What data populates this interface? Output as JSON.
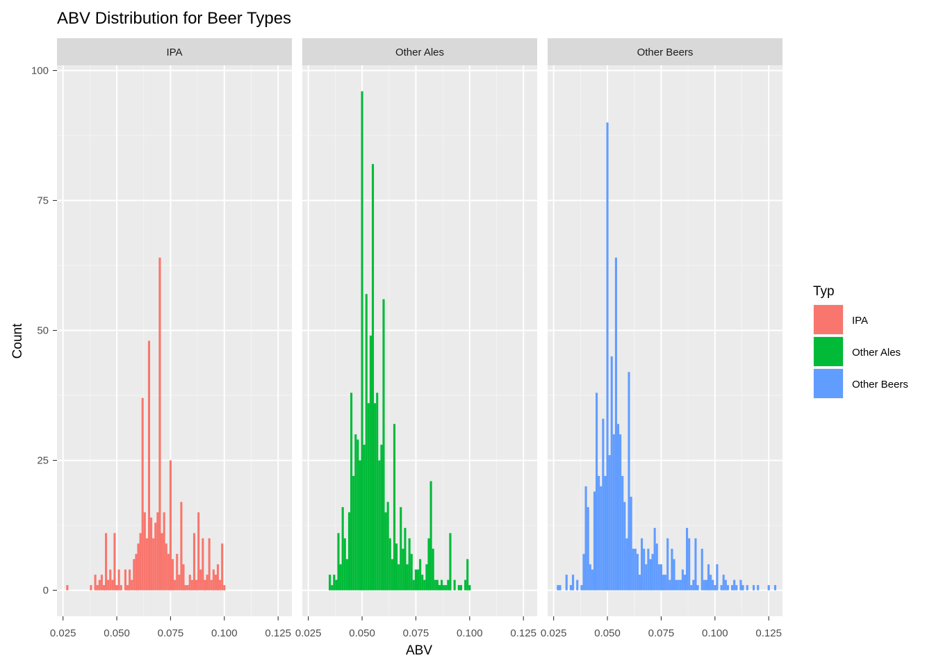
{
  "chart_data": {
    "type": "bar",
    "title": "ABV Distribution for Beer Types",
    "xlabel": "ABV",
    "ylabel": "Count",
    "xlim": [
      0.0222,
      0.1314
    ],
    "ylim": [
      -5,
      101
    ],
    "x_ticks": [
      "0.025",
      "0.050",
      "0.075",
      "0.100",
      "0.125"
    ],
    "y_ticks": [
      "0",
      "25",
      "50",
      "75",
      "100"
    ],
    "x_tick_values": [
      0.025,
      0.05,
      0.075,
      0.1,
      0.125
    ],
    "y_tick_values": [
      0,
      25,
      50,
      75,
      100
    ],
    "bin_width": 0.001,
    "grid": true,
    "legend": {
      "title": "Typ",
      "position": "right",
      "items": [
        {
          "label": "IPA",
          "color": "#F8766D"
        },
        {
          "label": "Other Ales",
          "color": "#00BA38"
        },
        {
          "label": "Other Beers",
          "color": "#619CFF"
        }
      ]
    },
    "facets": [
      {
        "name": "IPA",
        "color": "#F8766D",
        "bins": [
          [
            0.027,
            1
          ],
          [
            0.038,
            1
          ],
          [
            0.04,
            3
          ],
          [
            0.041,
            1
          ],
          [
            0.042,
            2
          ],
          [
            0.043,
            3
          ],
          [
            0.044,
            1
          ],
          [
            0.045,
            11
          ],
          [
            0.046,
            2
          ],
          [
            0.047,
            4
          ],
          [
            0.048,
            2
          ],
          [
            0.049,
            11
          ],
          [
            0.05,
            1
          ],
          [
            0.051,
            4
          ],
          [
            0.052,
            1
          ],
          [
            0.054,
            4
          ],
          [
            0.055,
            1
          ],
          [
            0.056,
            4
          ],
          [
            0.057,
            2
          ],
          [
            0.058,
            6
          ],
          [
            0.059,
            7
          ],
          [
            0.06,
            9
          ],
          [
            0.061,
            11
          ],
          [
            0.062,
            37
          ],
          [
            0.063,
            15
          ],
          [
            0.064,
            10
          ],
          [
            0.065,
            48
          ],
          [
            0.066,
            14
          ],
          [
            0.067,
            10
          ],
          [
            0.068,
            13
          ],
          [
            0.069,
            15
          ],
          [
            0.07,
            64
          ],
          [
            0.071,
            11
          ],
          [
            0.072,
            15
          ],
          [
            0.073,
            9
          ],
          [
            0.074,
            7
          ],
          [
            0.075,
            25
          ],
          [
            0.076,
            6
          ],
          [
            0.077,
            2
          ],
          [
            0.078,
            7
          ],
          [
            0.079,
            3
          ],
          [
            0.08,
            17
          ],
          [
            0.081,
            5
          ],
          [
            0.082,
            1
          ],
          [
            0.083,
            1
          ],
          [
            0.084,
            3
          ],
          [
            0.085,
            2
          ],
          [
            0.086,
            11
          ],
          [
            0.087,
            2
          ],
          [
            0.088,
            15
          ],
          [
            0.089,
            4
          ],
          [
            0.09,
            10
          ],
          [
            0.091,
            2
          ],
          [
            0.092,
            3
          ],
          [
            0.093,
            10
          ],
          [
            0.094,
            2
          ],
          [
            0.095,
            4
          ],
          [
            0.096,
            3
          ],
          [
            0.097,
            5
          ],
          [
            0.098,
            2
          ],
          [
            0.099,
            9
          ],
          [
            0.1,
            1
          ]
        ]
      },
      {
        "name": "Other Ales",
        "color": "#00BA38",
        "bins": [
          [
            0.035,
            3
          ],
          [
            0.036,
            1
          ],
          [
            0.037,
            3
          ],
          [
            0.038,
            2
          ],
          [
            0.039,
            11
          ],
          [
            0.04,
            5
          ],
          [
            0.041,
            16
          ],
          [
            0.042,
            10
          ],
          [
            0.043,
            6
          ],
          [
            0.044,
            15
          ],
          [
            0.045,
            38
          ],
          [
            0.046,
            22
          ],
          [
            0.047,
            30
          ],
          [
            0.048,
            29
          ],
          [
            0.049,
            25
          ],
          [
            0.05,
            96
          ],
          [
            0.051,
            28
          ],
          [
            0.052,
            57
          ],
          [
            0.053,
            36
          ],
          [
            0.054,
            49
          ],
          [
            0.055,
            82
          ],
          [
            0.056,
            36
          ],
          [
            0.057,
            38
          ],
          [
            0.058,
            25
          ],
          [
            0.059,
            28
          ],
          [
            0.06,
            56
          ],
          [
            0.061,
            15
          ],
          [
            0.062,
            17
          ],
          [
            0.063,
            10
          ],
          [
            0.064,
            6
          ],
          [
            0.065,
            32
          ],
          [
            0.066,
            9
          ],
          [
            0.067,
            5
          ],
          [
            0.068,
            16
          ],
          [
            0.069,
            8
          ],
          [
            0.07,
            12
          ],
          [
            0.071,
            5
          ],
          [
            0.072,
            10
          ],
          [
            0.073,
            7
          ],
          [
            0.074,
            2
          ],
          [
            0.075,
            4
          ],
          [
            0.076,
            4
          ],
          [
            0.077,
            6
          ],
          [
            0.078,
            3
          ],
          [
            0.079,
            2
          ],
          [
            0.08,
            5
          ],
          [
            0.081,
            10
          ],
          [
            0.082,
            21
          ],
          [
            0.083,
            8
          ],
          [
            0.084,
            2
          ],
          [
            0.085,
            2
          ],
          [
            0.086,
            1
          ],
          [
            0.087,
            2
          ],
          [
            0.088,
            1
          ],
          [
            0.089,
            1
          ],
          [
            0.09,
            2
          ],
          [
            0.091,
            11
          ],
          [
            0.093,
            2
          ],
          [
            0.095,
            1
          ],
          [
            0.096,
            1
          ],
          [
            0.098,
            2
          ],
          [
            0.099,
            6
          ],
          [
            0.1,
            1
          ]
        ]
      },
      {
        "name": "Other Beers",
        "color": "#619CFF",
        "bins": [
          [
            0.027,
            1
          ],
          [
            0.028,
            1
          ],
          [
            0.031,
            3
          ],
          [
            0.033,
            1
          ],
          [
            0.034,
            3
          ],
          [
            0.036,
            2
          ],
          [
            0.038,
            1
          ],
          [
            0.039,
            7
          ],
          [
            0.04,
            20
          ],
          [
            0.041,
            16
          ],
          [
            0.042,
            5
          ],
          [
            0.043,
            4
          ],
          [
            0.044,
            19
          ],
          [
            0.045,
            38
          ],
          [
            0.046,
            22
          ],
          [
            0.047,
            20
          ],
          [
            0.048,
            33
          ],
          [
            0.049,
            22
          ],
          [
            0.05,
            90
          ],
          [
            0.051,
            26
          ],
          [
            0.052,
            45
          ],
          [
            0.053,
            30
          ],
          [
            0.054,
            64
          ],
          [
            0.055,
            32
          ],
          [
            0.056,
            30
          ],
          [
            0.057,
            22
          ],
          [
            0.058,
            17
          ],
          [
            0.059,
            10
          ],
          [
            0.06,
            42
          ],
          [
            0.061,
            18
          ],
          [
            0.062,
            8
          ],
          [
            0.063,
            8
          ],
          [
            0.064,
            7
          ],
          [
            0.065,
            3
          ],
          [
            0.066,
            10
          ],
          [
            0.067,
            8
          ],
          [
            0.068,
            5
          ],
          [
            0.069,
            8
          ],
          [
            0.07,
            6
          ],
          [
            0.071,
            7
          ],
          [
            0.072,
            12
          ],
          [
            0.073,
            9
          ],
          [
            0.074,
            5
          ],
          [
            0.075,
            5
          ],
          [
            0.076,
            3
          ],
          [
            0.077,
            3
          ],
          [
            0.078,
            10
          ],
          [
            0.079,
            2
          ],
          [
            0.08,
            8
          ],
          [
            0.081,
            6
          ],
          [
            0.082,
            2
          ],
          [
            0.083,
            2
          ],
          [
            0.084,
            2
          ],
          [
            0.085,
            4
          ],
          [
            0.086,
            3
          ],
          [
            0.087,
            12
          ],
          [
            0.088,
            10
          ],
          [
            0.089,
            1
          ],
          [
            0.09,
            2
          ],
          [
            0.091,
            10
          ],
          [
            0.092,
            1
          ],
          [
            0.094,
            8
          ],
          [
            0.095,
            2
          ],
          [
            0.096,
            2
          ],
          [
            0.097,
            5
          ],
          [
            0.098,
            3
          ],
          [
            0.099,
            2
          ],
          [
            0.1,
            1
          ],
          [
            0.101,
            5
          ],
          [
            0.103,
            1
          ],
          [
            0.104,
            3
          ],
          [
            0.105,
            2
          ],
          [
            0.106,
            1
          ],
          [
            0.108,
            1
          ],
          [
            0.109,
            2
          ],
          [
            0.11,
            1
          ],
          [
            0.112,
            2
          ],
          [
            0.113,
            1
          ],
          [
            0.115,
            1
          ],
          [
            0.118,
            1
          ],
          [
            0.12,
            1
          ],
          [
            0.125,
            1
          ],
          [
            0.128,
            1
          ]
        ]
      }
    ]
  }
}
